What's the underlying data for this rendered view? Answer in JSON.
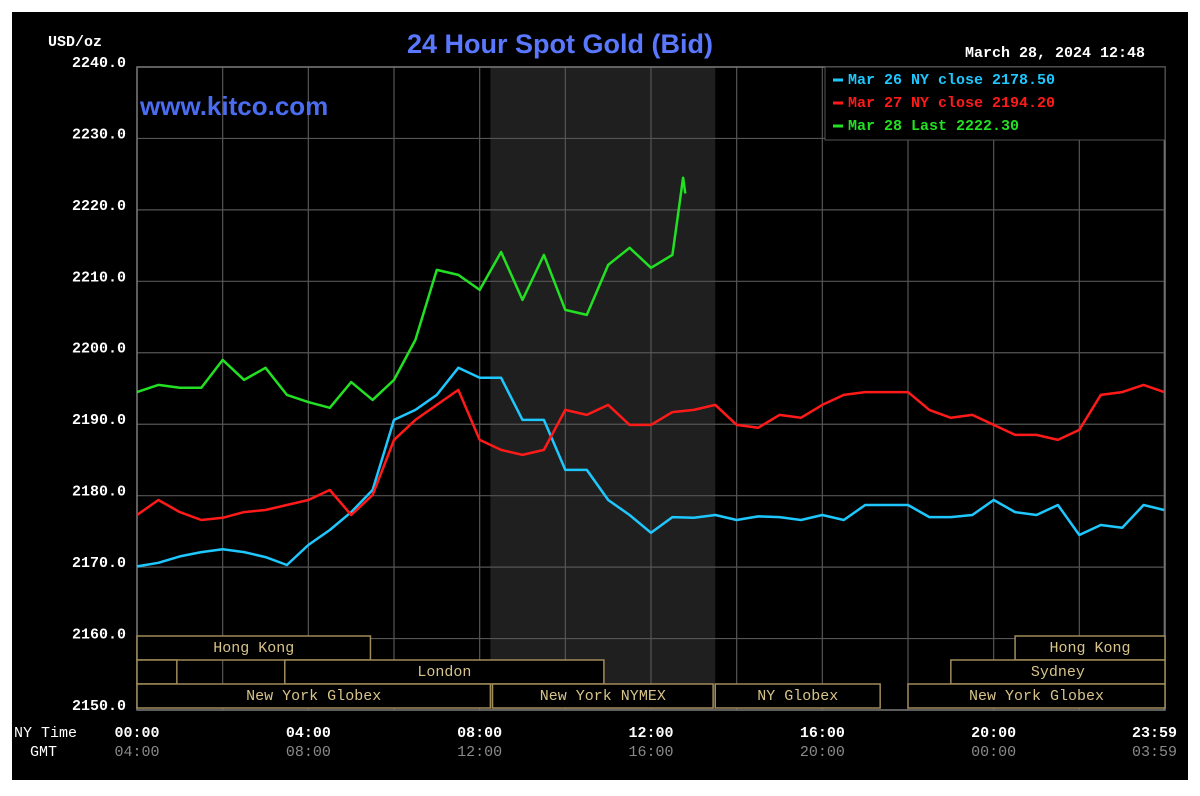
{
  "chart_data": {
    "type": "line",
    "title": "24 Hour Spot Gold (Bid)",
    "subtitle": "March 28, 2024 12:48",
    "ylabel": "USD/oz",
    "watermark": "www.kitco.com",
    "x_row_label": "NY Time",
    "gmt_row_label": "GMT",
    "x": [
      0,
      0.5,
      1,
      1.5,
      2,
      2.5,
      3,
      3.5,
      4,
      4.5,
      5,
      5.5,
      6,
      6.5,
      7,
      7.5,
      8,
      8.5,
      9,
      9.5,
      10,
      10.5,
      11,
      11.5,
      12,
      12.5,
      13,
      13.5,
      14,
      14.5,
      15,
      15.5,
      16,
      16.5,
      17,
      17.5,
      18,
      18.5,
      19,
      19.5,
      20,
      20.5,
      21,
      21.5,
      22,
      22.5,
      23,
      23.5,
      23.98
    ],
    "series": [
      {
        "name": "Mar 26 NY close 2178.50",
        "color": "#1ec8ff",
        "values": [
          2170.1,
          2170.6,
          2171.5,
          2172.1,
          2172.5,
          2172.1,
          2171.4,
          2170.3,
          2173.1,
          2175.2,
          2177.7,
          2180.8,
          2190.6,
          2192.0,
          2194.1,
          2197.9,
          2196.5,
          2196.5,
          2190.6,
          2190.6,
          2183.6,
          2183.6,
          2179.4,
          2177.3,
          2174.8,
          2177.0,
          2176.9,
          2177.3,
          2176.6,
          2177.1,
          2177.0,
          2176.6,
          2177.3,
          2176.6,
          2178.7,
          2178.7,
          2178.7,
          2177.0,
          2177.0,
          2177.3,
          2179.4,
          2177.7,
          2177.3,
          2178.7,
          2174.5,
          2175.9,
          2175.5,
          2178.7,
          2178.0
        ]
      },
      {
        "name": "Mar 27 NY close 2194.20",
        "color": "#ff1a1a",
        "values": [
          2177.3,
          2179.4,
          2177.7,
          2176.6,
          2176.9,
          2177.7,
          2178.0,
          2178.7,
          2179.4,
          2180.8,
          2177.3,
          2180.1,
          2187.8,
          2190.6,
          2192.7,
          2194.8,
          2187.8,
          2186.4,
          2185.7,
          2186.4,
          2192.0,
          2191.3,
          2192.7,
          2189.9,
          2189.9,
          2191.7,
          2192.0,
          2192.7,
          2189.9,
          2189.5,
          2191.3,
          2190.9,
          2192.7,
          2194.1,
          2194.5,
          2194.5,
          2194.5,
          2192.0,
          2190.9,
          2191.3,
          2189.9,
          2188.5,
          2188.5,
          2187.8,
          2189.2,
          2194.1,
          2194.5,
          2195.5,
          2194.5
        ]
      },
      {
        "name": "Mar 28 Last 2222.30",
        "color": "#22e022",
        "x": [
          0,
          0.5,
          1,
          1.5,
          2,
          2.5,
          3,
          3.5,
          4,
          4.5,
          5,
          5.5,
          6,
          6.5,
          7,
          7.5,
          8,
          8.5,
          9,
          9.5,
          10,
          10.5,
          11,
          11.5,
          12,
          12.5,
          12.6,
          12.75,
          12.8
        ],
        "values": [
          2194.5,
          2195.5,
          2195.1,
          2195.1,
          2199.0,
          2196.2,
          2197.9,
          2194.1,
          2193.1,
          2192.3,
          2195.9,
          2193.4,
          2196.2,
          2201.8,
          2211.6,
          2210.9,
          2208.8,
          2214.1,
          2207.4,
          2213.7,
          2206.0,
          2205.3,
          2212.3,
          2214.7,
          2211.9,
          2213.7,
          2218.0,
          2224.5,
          2222.3
        ]
      }
    ],
    "xlim": [
      0,
      24
    ],
    "xticks": [
      {
        "value": 0,
        "label": "00:00"
      },
      {
        "value": 4,
        "label": "04:00"
      },
      {
        "value": 8,
        "label": "08:00"
      },
      {
        "value": 12,
        "label": "12:00"
      },
      {
        "value": 16,
        "label": "16:00"
      },
      {
        "value": 20,
        "label": "20:00"
      },
      {
        "value": 23.98,
        "label": "23:59"
      }
    ],
    "gmt_labels": [
      "04:00",
      "08:00",
      "12:00",
      "16:00",
      "20:00",
      "00:00",
      "03:59"
    ],
    "x_minor_ticks": [
      2,
      6,
      10,
      14,
      18,
      22
    ],
    "ylim": [
      2150,
      2240
    ],
    "yticks": [
      {
        "value": 2150,
        "label": "2150.0"
      },
      {
        "value": 2160,
        "label": "2160.0"
      },
      {
        "value": 2170,
        "label": "2170.0"
      },
      {
        "value": 2180,
        "label": "2180.0"
      },
      {
        "value": 2190,
        "label": "2190.0"
      },
      {
        "value": 2200,
        "label": "2200.0"
      },
      {
        "value": 2210,
        "label": "2210.0"
      },
      {
        "value": 2220,
        "label": "2220.0"
      },
      {
        "value": 2230,
        "label": "2230.0"
      },
      {
        "value": 2240,
        "label": "2240.0"
      }
    ],
    "grid": true,
    "highlight_x": [
      8.25,
      13.5
    ],
    "session_rows": [
      [
        {
          "label": "Hong Kong",
          "start": 0,
          "end": 5.45
        },
        {
          "label": "Hong Kong",
          "start": 20.5,
          "end": 24
        }
      ],
      [
        {
          "label": null,
          "start": 0,
          "end": 0.93
        },
        {
          "label": "London",
          "start": 3.45,
          "end": 10.9
        },
        {
          "label": "Sydney",
          "start": 19,
          "end": 24
        }
      ],
      [
        {
          "label": "New York Globex",
          "start": 0,
          "end": 8.25
        },
        {
          "label": "New York NYMEX",
          "start": 8.3,
          "end": 13.45
        },
        {
          "label": "NY Globex",
          "start": 13.5,
          "end": 17.35
        },
        {
          "label": "New York Globex",
          "start": 18,
          "end": 24
        }
      ]
    ]
  }
}
